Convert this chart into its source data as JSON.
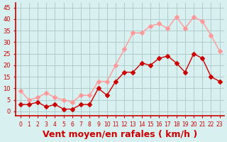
{
  "x": [
    0,
    1,
    2,
    3,
    4,
    5,
    6,
    7,
    8,
    9,
    10,
    11,
    12,
    13,
    14,
    15,
    16,
    17,
    18,
    19,
    20,
    21,
    22,
    23
  ],
  "wind_avg": [
    3,
    3,
    4,
    2,
    3,
    1,
    1,
    3,
    3,
    10,
    7,
    13,
    17,
    17,
    21,
    20,
    23,
    24,
    21,
    17,
    25,
    23,
    15,
    13
  ],
  "wind_gust": [
    9,
    5,
    6,
    8,
    6,
    5,
    4,
    7,
    7,
    13,
    13,
    20,
    27,
    34,
    34,
    37,
    38,
    36,
    41,
    36,
    41,
    39,
    33,
    26
  ],
  "bg_color": "#d8f0f0",
  "grid_color": "#b0cccc",
  "avg_color": "#cc0000",
  "gust_color": "#ff9999",
  "axis_color": "#cc0000",
  "xlabel": "Vent moyen/en rafales ( km/h )",
  "xlabel_fontsize": 9,
  "yticks": [
    0,
    5,
    10,
    15,
    20,
    25,
    30,
    35,
    40,
    45
  ],
  "ylim": [
    -2,
    47
  ],
  "xlim": [
    -0.5,
    23.5
  ]
}
